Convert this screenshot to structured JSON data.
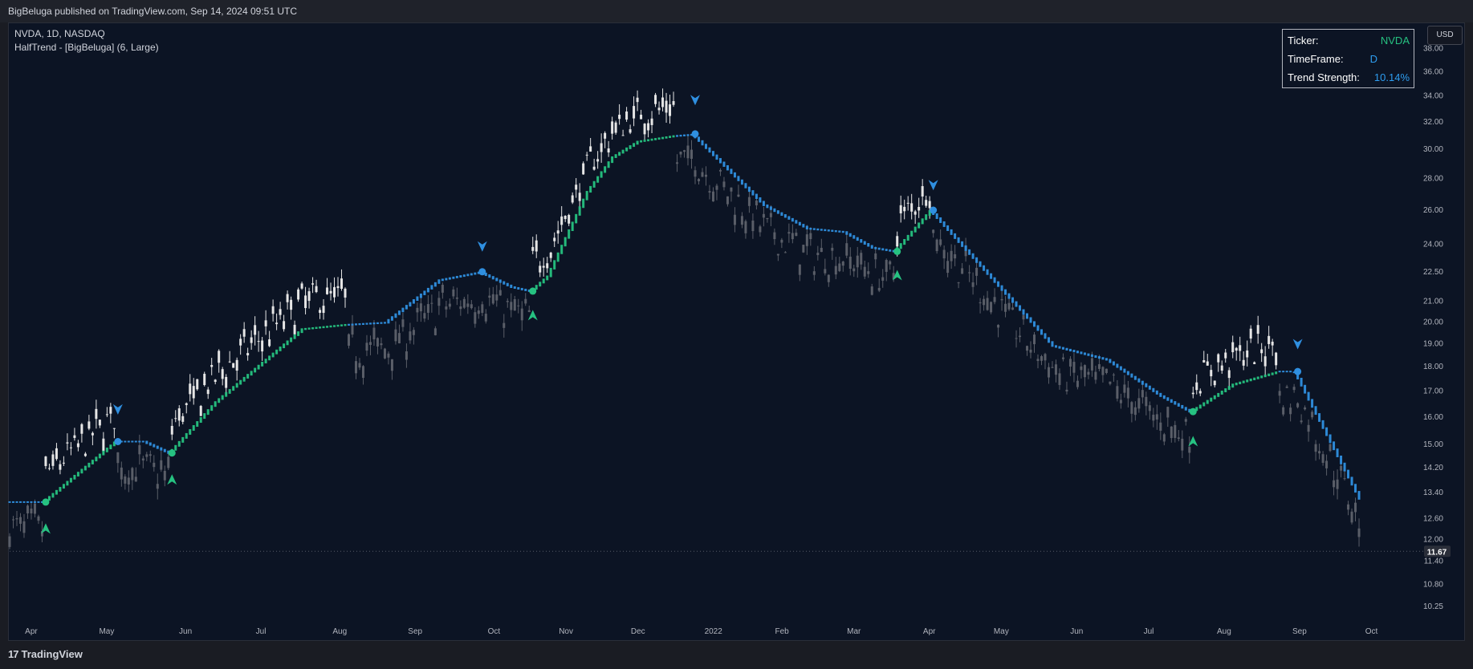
{
  "header": {
    "published": "BigBeluga published on TradingView.com, Sep 14, 2024 09:51 UTC"
  },
  "legend": {
    "symbol": "NVDA, 1D, NASDAQ",
    "indicator": "HalfTrend - [BigBeluga] (6, Large)"
  },
  "currency_button": "USD",
  "info_table": {
    "rows": [
      {
        "label": "Ticker:",
        "value": "NVDA",
        "color": "#26c281"
      },
      {
        "label": "TimeFrame:",
        "value": "D",
        "color": "#2e9df0"
      },
      {
        "label": "Trend Strength:",
        "value": "10.14%",
        "color": "#2e9df0"
      }
    ]
  },
  "footer": {
    "brand": "TradingView",
    "brand_mark": "17"
  },
  "colors": {
    "bull": "#26c281",
    "bear": "#2f8fe0",
    "candle": "#e6e6e6",
    "candle_dim": "#5a5e68",
    "background": "#0c1424"
  },
  "chart_data": {
    "type": "candlestick",
    "symbol": "NVDA",
    "timeframe": "1D",
    "y_scale": "log",
    "ylim": [
      9.8,
      39.5
    ],
    "y_ticks": [
      "38.00",
      "36.00",
      "34.00",
      "32.00",
      "30.00",
      "28.00",
      "26.00",
      "24.00",
      "22.50",
      "21.00",
      "20.00",
      "19.00",
      "18.00",
      "17.00",
      "16.00",
      "15.00",
      "14.20",
      "13.40",
      "12.60",
      "12.00",
      "11.40",
      "10.80",
      "10.25"
    ],
    "x_ticks": [
      "Apr",
      "May",
      "Jun",
      "Jul",
      "Aug",
      "Sep",
      "Oct",
      "Nov",
      "Dec",
      "2022",
      "Feb",
      "Mar",
      "Apr",
      "May",
      "Jun",
      "Jul",
      "Aug",
      "Sep",
      "Oct"
    ],
    "last_price": "11.67",
    "halftrend_points": [
      {
        "d": 0,
        "v": 13.1
      },
      {
        "d": 10,
        "v": 13.1
      },
      {
        "d": 30,
        "v": 15.1
      },
      {
        "d": 38,
        "v": 15.1
      },
      {
        "d": 45,
        "v": 14.7
      },
      {
        "d": 58,
        "v": 16.6
      },
      {
        "d": 82,
        "v": 19.7
      },
      {
        "d": 94,
        "v": 19.9
      },
      {
        "d": 105,
        "v": 20.0
      },
      {
        "d": 120,
        "v": 22.1
      },
      {
        "d": 131,
        "v": 22.5
      },
      {
        "d": 140,
        "v": 21.7
      },
      {
        "d": 145,
        "v": 21.5
      },
      {
        "d": 150,
        "v": 22.3
      },
      {
        "d": 161,
        "v": 27.2
      },
      {
        "d": 168,
        "v": 29.5
      },
      {
        "d": 175,
        "v": 30.6
      },
      {
        "d": 185,
        "v": 31.0
      },
      {
        "d": 190,
        "v": 31.1
      },
      {
        "d": 210,
        "v": 26.3
      },
      {
        "d": 222,
        "v": 24.9
      },
      {
        "d": 232,
        "v": 24.7
      },
      {
        "d": 240,
        "v": 23.8
      },
      {
        "d": 246,
        "v": 23.6
      },
      {
        "d": 256,
        "v": 26.0
      },
      {
        "d": 290,
        "v": 18.9
      },
      {
        "d": 305,
        "v": 18.3
      },
      {
        "d": 320,
        "v": 16.8
      },
      {
        "d": 328,
        "v": 16.2
      },
      {
        "d": 340,
        "v": 17.3
      },
      {
        "d": 352,
        "v": 17.8
      },
      {
        "d": 357,
        "v": 17.8
      },
      {
        "d": 375,
        "v": 13.2
      }
    ],
    "bull_segments": [
      [
        10,
        30
      ],
      [
        45,
        94
      ],
      [
        145,
        185
      ],
      [
        246,
        256
      ],
      [
        328,
        352
      ]
    ],
    "bear_segments": [
      [
        0,
        10
      ],
      [
        30,
        45
      ],
      [
        94,
        145
      ],
      [
        185,
        246
      ],
      [
        256,
        328
      ],
      [
        352,
        375
      ]
    ],
    "flip_dots": [
      {
        "d": 10,
        "v": 13.1,
        "trend": "bull"
      },
      {
        "d": 30,
        "v": 15.1,
        "trend": "bear"
      },
      {
        "d": 45,
        "v": 14.7,
        "trend": "bull"
      },
      {
        "d": 131,
        "v": 22.5,
        "trend": "bear"
      },
      {
        "d": 145,
        "v": 21.5,
        "trend": "bull"
      },
      {
        "d": 190,
        "v": 31.1,
        "trend": "bear"
      },
      {
        "d": 246,
        "v": 23.6,
        "trend": "bull"
      },
      {
        "d": 256,
        "v": 26.0,
        "trend": "bear"
      },
      {
        "d": 328,
        "v": 16.2,
        "trend": "bull"
      },
      {
        "d": 357,
        "v": 17.8,
        "trend": "bear"
      }
    ],
    "signals": [
      {
        "d": 10,
        "v": 12.3,
        "type": "buy"
      },
      {
        "d": 30,
        "v": 16.3,
        "type": "sell"
      },
      {
        "d": 45,
        "v": 13.8,
        "type": "buy"
      },
      {
        "d": 131,
        "v": 23.9,
        "type": "sell"
      },
      {
        "d": 145,
        "v": 20.3,
        "type": "buy"
      },
      {
        "d": 190,
        "v": 33.7,
        "type": "sell"
      },
      {
        "d": 246,
        "v": 22.3,
        "type": "buy"
      },
      {
        "d": 256,
        "v": 27.6,
        "type": "sell"
      },
      {
        "d": 328,
        "v": 15.1,
        "type": "buy"
      },
      {
        "d": 357,
        "v": 19.0,
        "type": "sell"
      }
    ]
  }
}
